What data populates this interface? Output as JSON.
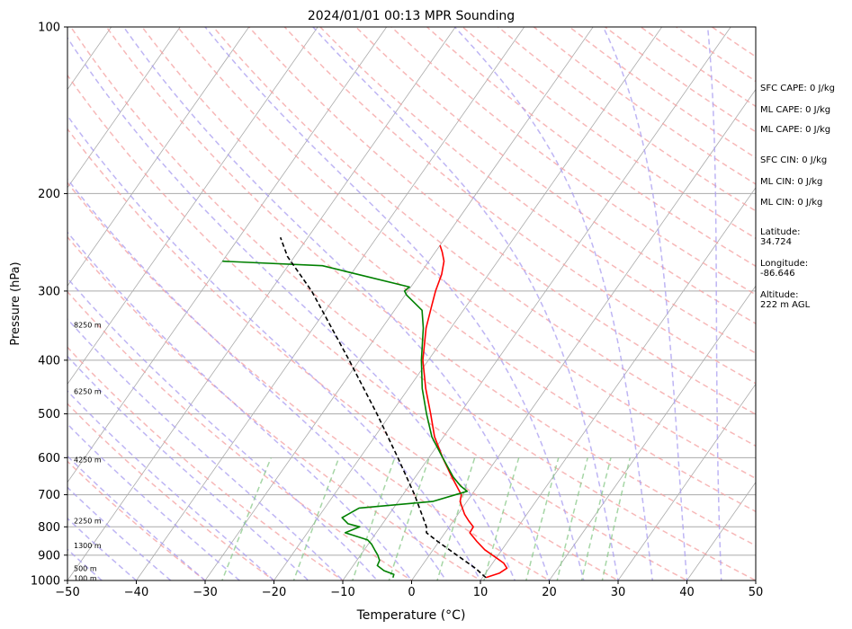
{
  "chart_data": {
    "type": "line",
    "title": "2024/01/01 00:13 MPR Sounding",
    "xlabel": "Temperature (°C)",
    "ylabel": "Pressure (hPa)",
    "xlim": [
      -50,
      50
    ],
    "ylim": [
      1000,
      100
    ],
    "y_scale": "log",
    "x_ticks": [
      "−50",
      "−40",
      "−30",
      "−20",
      "−10",
      "0",
      "10",
      "20",
      "30",
      "40",
      "50"
    ],
    "y_ticks": [
      "1000",
      "900",
      "800",
      "700",
      "600",
      "500",
      "400",
      "300",
      "200",
      "100"
    ],
    "grid": true,
    "height_labels": [
      {
        "text": "100 m",
        "p": 990
      },
      {
        "text": "500 m",
        "p": 950
      },
      {
        "text": "1300 m",
        "p": 865
      },
      {
        "text": "2250 m",
        "p": 780
      },
      {
        "text": "4250 m",
        "p": 605
      },
      {
        "text": "6250 m",
        "p": 455
      },
      {
        "text": "8250 m",
        "p": 345
      }
    ],
    "series": [
      {
        "role": "temperature",
        "color": "#ff0000",
        "points": [
          [
            988,
            10.5
          ],
          [
            970,
            12.0
          ],
          [
            950,
            12.6
          ],
          [
            930,
            11.6
          ],
          [
            910,
            10.0
          ],
          [
            880,
            7.5
          ],
          [
            850,
            5.5
          ],
          [
            820,
            3.6
          ],
          [
            800,
            3.5
          ],
          [
            780,
            2.2
          ],
          [
            760,
            1.0
          ],
          [
            740,
            0.0
          ],
          [
            720,
            -1.0
          ],
          [
            700,
            -1.5
          ],
          [
            650,
            -4.7
          ],
          [
            600,
            -8.0
          ],
          [
            550,
            -11.3
          ],
          [
            500,
            -14.2
          ],
          [
            450,
            -17.5
          ],
          [
            400,
            -20.8
          ],
          [
            350,
            -23.6
          ],
          [
            320,
            -25.0
          ],
          [
            300,
            -26.0
          ],
          [
            280,
            -26.8
          ],
          [
            265,
            -27.8
          ],
          [
            255,
            -29.0
          ],
          [
            248,
            -30.0
          ]
        ]
      },
      {
        "role": "dewpoint",
        "color": "#008000",
        "points": [
          [
            988,
            -3.0
          ],
          [
            975,
            -3.2
          ],
          [
            960,
            -5.0
          ],
          [
            940,
            -6.5
          ],
          [
            920,
            -6.7
          ],
          [
            900,
            -7.5
          ],
          [
            880,
            -8.5
          ],
          [
            860,
            -9.5
          ],
          [
            845,
            -10.5
          ],
          [
            820,
            -14.5
          ],
          [
            800,
            -13.0
          ],
          [
            790,
            -15.0
          ],
          [
            770,
            -16.5
          ],
          [
            760,
            -16.0
          ],
          [
            740,
            -15.0
          ],
          [
            720,
            -5.0
          ],
          [
            690,
            -1.0
          ],
          [
            675,
            -2.5
          ],
          [
            650,
            -4.5
          ],
          [
            600,
            -8.0
          ],
          [
            550,
            -11.7
          ],
          [
            500,
            -14.8
          ],
          [
            450,
            -18.0
          ],
          [
            400,
            -21.0
          ],
          [
            350,
            -24.0
          ],
          [
            325,
            -26.0
          ],
          [
            305,
            -29.8
          ],
          [
            300,
            -30.5
          ],
          [
            295,
            -30.2
          ],
          [
            270,
            -45
          ],
          [
            265,
            -60
          ]
        ]
      },
      {
        "role": "parcel",
        "color": "#000000",
        "style": "dashed",
        "points": [
          [
            988,
            10.5
          ],
          [
            950,
            8.0
          ],
          [
            900,
            4.0
          ],
          [
            850,
            -0.2
          ],
          [
            820,
            -2.7
          ],
          [
            800,
            -3.3
          ],
          [
            700,
            -8.3
          ],
          [
            600,
            -14.5
          ],
          [
            500,
            -22.0
          ],
          [
            400,
            -31.5
          ],
          [
            300,
            -44.0
          ],
          [
            260,
            -51.0
          ],
          [
            240,
            -54.0
          ]
        ]
      }
    ]
  },
  "info": {
    "sfc_cape": "SFC CAPE: 0 J/kg",
    "ml_cape_1": "ML CAPE: 0 J/kg",
    "ml_cape_2": "ML CAPE: 0 J/kg",
    "sfc_cin": "SFC CIN: 0 J/kg",
    "ml_cin_1": "ML CIN: 0 J/kg",
    "ml_cin_2": "ML CIN: 0 J/kg",
    "latitude_label": "Latitude:",
    "latitude_value": "34.724",
    "longitude_label": "Longitude:",
    "longitude_value": "-86.646",
    "altitude_label": "Altitude:",
    "altitude_value": "222 m AGL"
  },
  "colors": {
    "temperature": "#ff0000",
    "dewpoint": "#008000",
    "parcel": "#000000",
    "dry_adiabat": "#f4a0a0",
    "moist_adiabat": "#a89cf0",
    "mixing_ratio": "#88c888",
    "isotherm": "#aaaaaa"
  }
}
